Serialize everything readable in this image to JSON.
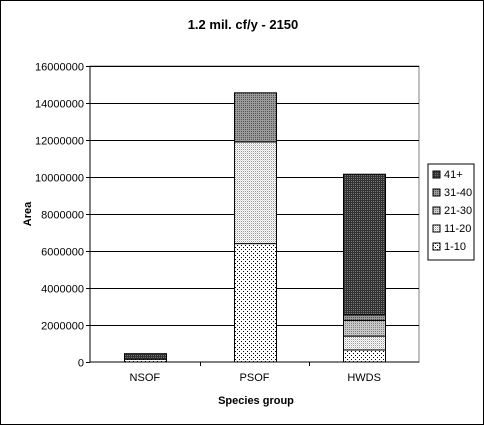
{
  "chart_data": {
    "type": "bar",
    "stacked": true,
    "title": "1.2 mil. cf/y - 2150",
    "xlabel": "Species group",
    "ylabel": "Area",
    "categories": [
      "NSOF",
      "PSOF",
      "HWDS"
    ],
    "ylim": [
      0,
      16000000
    ],
    "yticks": [
      0,
      2000000,
      4000000,
      6000000,
      8000000,
      10000000,
      12000000,
      14000000,
      16000000
    ],
    "ytick_labels": [
      "0",
      "2000000",
      "4000000",
      "6000000",
      "8000000",
      "10000000",
      "12000000",
      "14000000",
      "16000000"
    ],
    "grid": true,
    "legend_position": "right",
    "series": [
      {
        "name": "1-10",
        "values": [
          150000,
          6400000,
          650000
        ],
        "pattern": "sparse-dots"
      },
      {
        "name": "11-20",
        "values": [
          0,
          5500000,
          750000
        ],
        "pattern": "light-dots"
      },
      {
        "name": "21-30",
        "values": [
          0,
          0,
          850000
        ],
        "pattern": "medium-dots"
      },
      {
        "name": "31-40",
        "values": [
          0,
          2650000,
          300000
        ],
        "pattern": "dark-dots"
      },
      {
        "name": "41+",
        "values": [
          300000,
          0,
          7600000
        ],
        "pattern": "very-dark"
      }
    ]
  }
}
